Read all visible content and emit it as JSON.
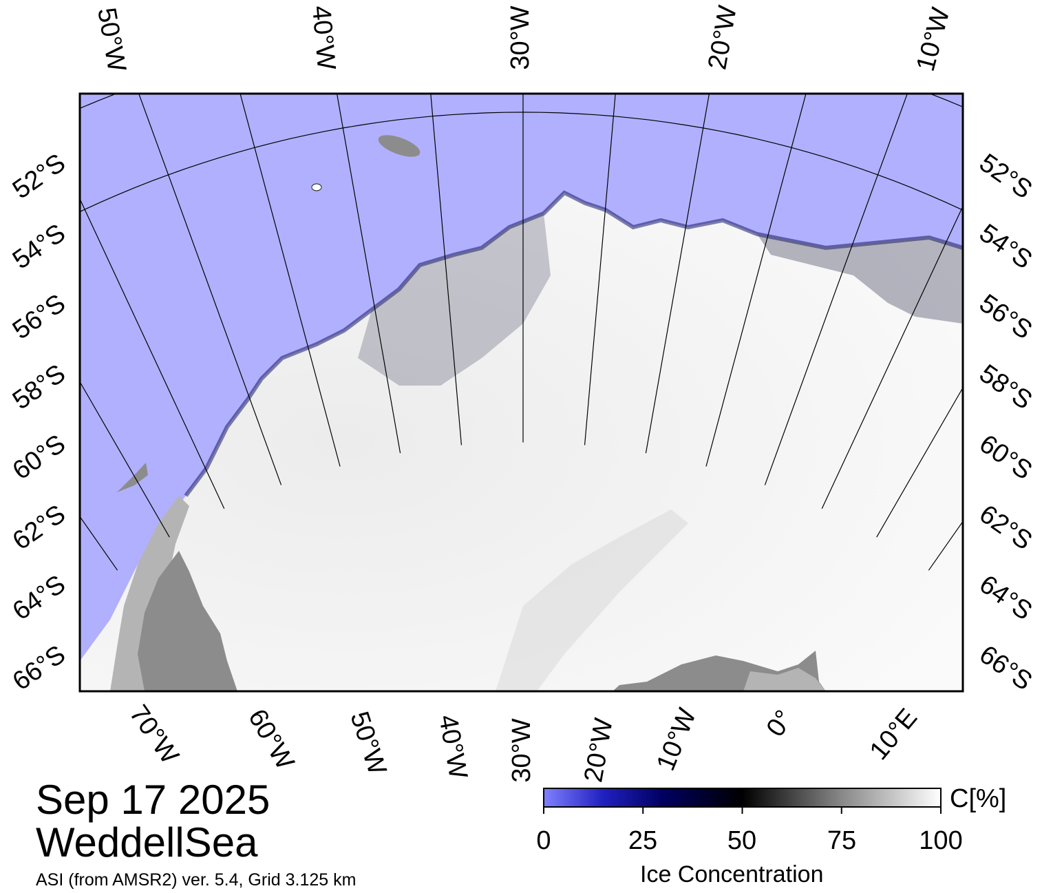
{
  "map": {
    "date": "Sep 17 2025",
    "region": "WeddellSea",
    "subtitle": "ASI (from AMSR2) ver. 5.4,  Grid 3.125 km",
    "top_longitude_labels": [
      "50°W",
      "40°W",
      "30°W",
      "20°W",
      "10°W"
    ],
    "bottom_longitude_labels": [
      "70°W",
      "60°W",
      "50°W",
      "40°W",
      "30°W",
      "20°W",
      "10°W",
      "0°",
      "10°E"
    ],
    "left_latitude_labels": [
      "52°S",
      "54°S",
      "56°S",
      "58°S",
      "60°S",
      "62°S",
      "64°S",
      "66°S"
    ],
    "right_latitude_labels": [
      "52°S",
      "54°S",
      "56°S",
      "58°S",
      "60°S",
      "62°S",
      "64°S",
      "66°S"
    ],
    "colors": {
      "open_water": "#b0b0ff",
      "land": "#8c8c8c",
      "land_light": "#b4b4b4",
      "ice_high": "#ffffff",
      "ice_low": "#0a0a50",
      "grid": "#000000"
    }
  },
  "colorbar": {
    "title": "Ice Concentration",
    "unit": "C[%]",
    "ticks": [
      "0",
      "25",
      "50",
      "75",
      "100"
    ],
    "min": 0,
    "max": 100
  }
}
